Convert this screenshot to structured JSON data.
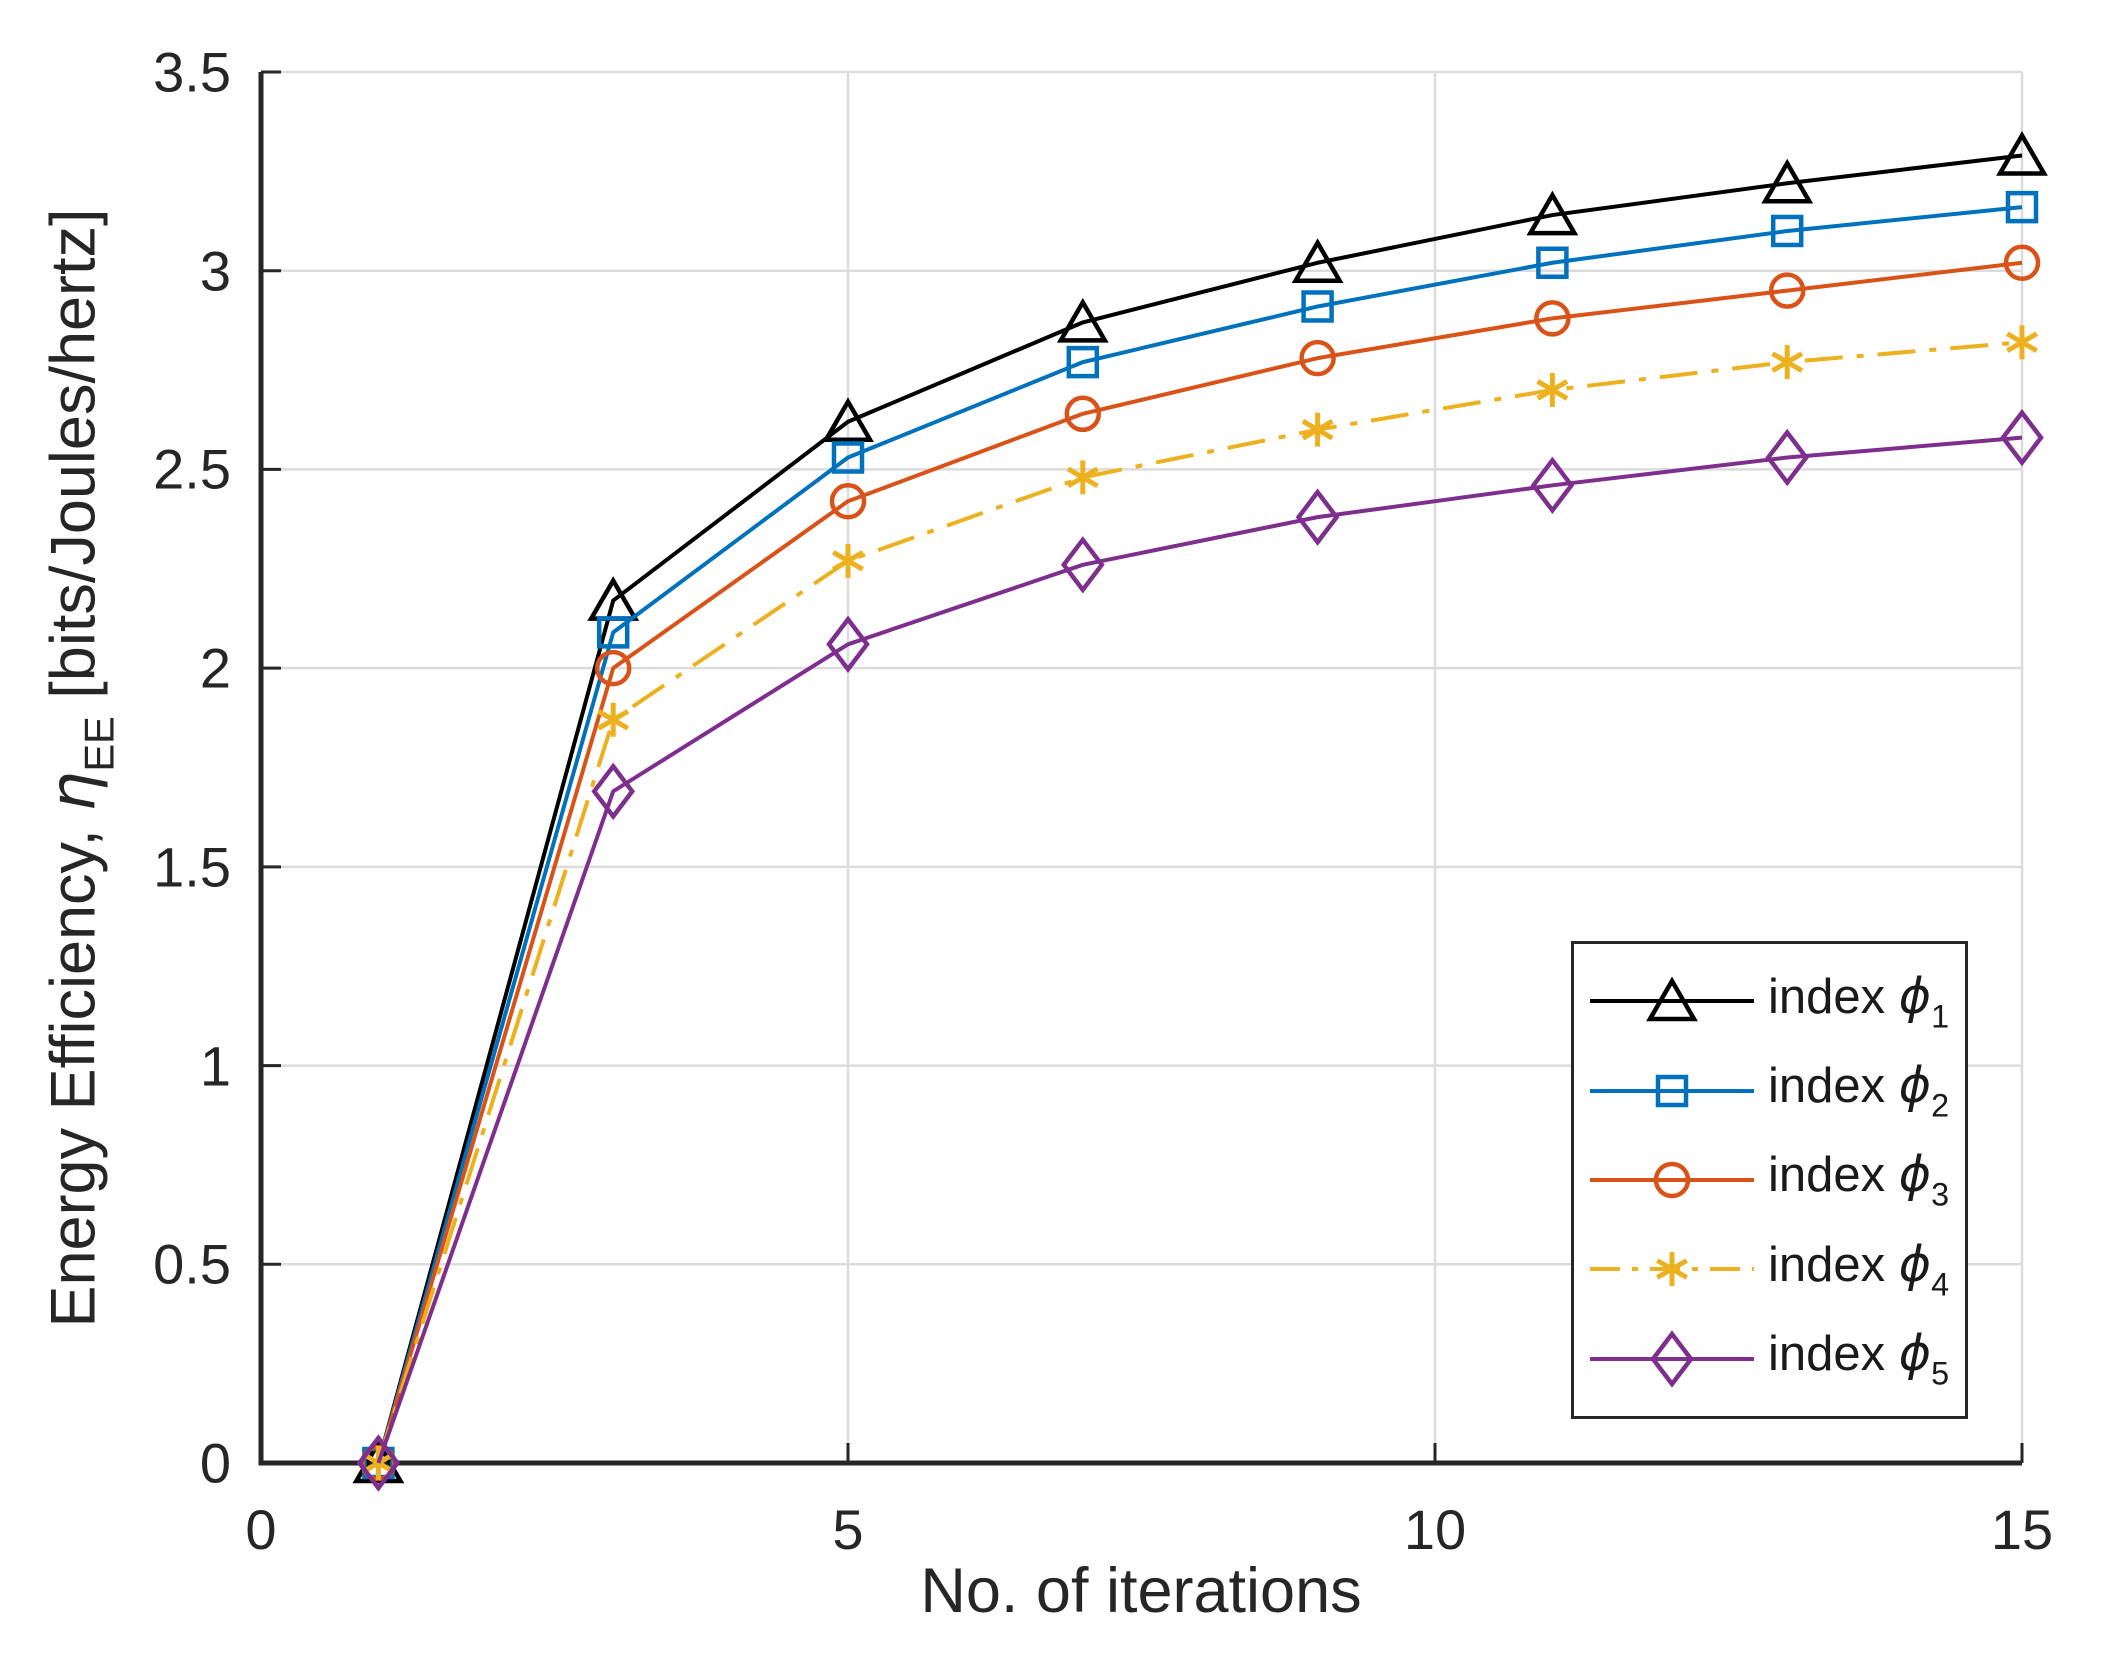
{
  "style": {
    "background": "#FFFFFF",
    "axis_color": "#262626",
    "grid_color": "#DCDCDC",
    "legend_border_color": "#262626"
  },
  "chart_data": {
    "type": "line",
    "title": "",
    "xlabel": "No. of iterations",
    "ylabel_parts": {
      "prefix": "Energy Efficiency, ",
      "symbol": "η",
      "subscript": "EE",
      "suffix": " [bits/Joules/hertz]"
    },
    "xlim": [
      0,
      15
    ],
    "ylim": [
      0,
      3.5
    ],
    "xticks": [
      0,
      5,
      10,
      15
    ],
    "xtick_labels": [
      "0",
      "5",
      "10",
      "15"
    ],
    "yticks": [
      0,
      0.5,
      1,
      1.5,
      2,
      2.5,
      3,
      3.5
    ],
    "ytick_labels": [
      "0",
      "0.5",
      "1",
      "1.5",
      "2",
      "2.5",
      "3",
      "3.5"
    ],
    "grid": true,
    "legend_position": "lower right",
    "x": [
      1,
      3,
      5,
      7,
      9,
      11,
      13,
      15
    ],
    "series": [
      {
        "id": "index-phi-1",
        "label_text": "index ",
        "label_symbol": "ϕ",
        "label_sub": "1",
        "color": "#000000",
        "marker": "triangle",
        "line_style": "solid",
        "values": [
          0,
          2.17,
          2.62,
          2.87,
          3.02,
          3.14,
          3.22,
          3.29
        ]
      },
      {
        "id": "index-phi-2",
        "label_text": "index ",
        "label_symbol": "ϕ",
        "label_sub": "2",
        "color": "#0072BD",
        "marker": "square",
        "line_style": "solid",
        "values": [
          0,
          2.09,
          2.53,
          2.77,
          2.91,
          3.02,
          3.1,
          3.16
        ]
      },
      {
        "id": "index-phi-3",
        "label_text": "index ",
        "label_symbol": "ϕ",
        "label_sub": "3",
        "color": "#D95319",
        "marker": "circle",
        "line_style": "solid",
        "values": [
          0,
          2.0,
          2.42,
          2.64,
          2.78,
          2.88,
          2.95,
          3.02
        ]
      },
      {
        "id": "index-phi-4",
        "label_text": "index ",
        "label_symbol": "ϕ",
        "label_sub": "4",
        "color": "#EDB120",
        "marker": "asterisk",
        "line_style": "dashdot",
        "values": [
          0,
          1.87,
          2.27,
          2.48,
          2.6,
          2.7,
          2.77,
          2.82
        ]
      },
      {
        "id": "index-phi-5",
        "label_text": "index ",
        "label_symbol": "ϕ",
        "label_sub": "5",
        "color": "#7E2F8E",
        "marker": "diamond",
        "line_style": "solid",
        "values": [
          0,
          1.69,
          2.06,
          2.26,
          2.38,
          2.46,
          2.53,
          2.58
        ]
      }
    ]
  }
}
